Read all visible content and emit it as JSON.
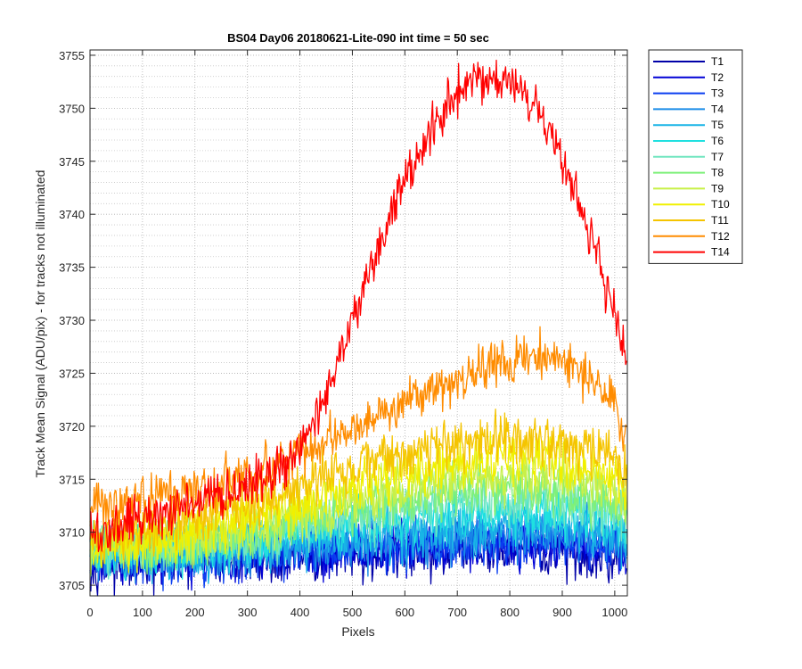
{
  "chart_data": {
    "type": "line",
    "title": "BS04 Day06 20180621-Lite-090 int time = 50 sec",
    "xlabel": "Pixels",
    "ylabel": "Track Mean Signal (ADU/pix) - for tracks not illuminated",
    "xlim": [
      0,
      1024
    ],
    "ylim": [
      3704,
      3755.5
    ],
    "xticks": [
      0,
      100,
      200,
      300,
      400,
      500,
      600,
      700,
      800,
      900,
      1000
    ],
    "yticks": [
      3705,
      3710,
      3715,
      3720,
      3725,
      3730,
      3735,
      3740,
      3745,
      3750,
      3755
    ],
    "x": [
      0,
      50,
      100,
      150,
      200,
      250,
      300,
      350,
      400,
      450,
      500,
      550,
      600,
      650,
      700,
      750,
      800,
      850,
      900,
      950,
      1000,
      1024
    ],
    "grid": true,
    "minor_grid_y": true,
    "legend_position": "outside-right",
    "series": [
      {
        "name": "T1",
        "color": "#0000a8",
        "noise": 1.2,
        "values": [
          3707.0,
          3707.0,
          3707.0,
          3707.0,
          3707.2,
          3707.3,
          3707.4,
          3707.5,
          3707.6,
          3707.7,
          3707.8,
          3707.9,
          3708.0,
          3708.0,
          3708.1,
          3708.1,
          3708.1,
          3708.1,
          3708.0,
          3707.9,
          3707.8,
          3707.5
        ]
      },
      {
        "name": "T2",
        "color": "#0000d6",
        "noise": 1.2,
        "values": [
          3707.2,
          3707.3,
          3707.4,
          3707.5,
          3707.6,
          3707.7,
          3707.9,
          3708.0,
          3708.1,
          3708.2,
          3708.4,
          3708.5,
          3708.6,
          3708.7,
          3708.8,
          3708.8,
          3708.9,
          3708.9,
          3708.8,
          3708.7,
          3708.5,
          3708.2
        ]
      },
      {
        "name": "T3",
        "color": "#0a3ef0",
        "noise": 1.2,
        "values": [
          3707.3,
          3707.4,
          3707.5,
          3707.6,
          3707.7,
          3707.8,
          3708.0,
          3708.1,
          3708.3,
          3708.5,
          3708.7,
          3708.8,
          3709.0,
          3709.1,
          3709.2,
          3709.3,
          3709.3,
          3709.3,
          3709.2,
          3709.1,
          3708.9,
          3708.6
        ]
      },
      {
        "name": "T4",
        "color": "#1a8ce8",
        "noise": 1.2,
        "values": [
          3707.5,
          3707.6,
          3707.7,
          3707.8,
          3707.9,
          3708.0,
          3708.2,
          3708.4,
          3708.6,
          3708.8,
          3709.0,
          3709.2,
          3709.4,
          3709.5,
          3709.6,
          3709.7,
          3709.8,
          3709.8,
          3709.7,
          3709.6,
          3709.4,
          3709.0
        ]
      },
      {
        "name": "T5",
        "color": "#18b4e6",
        "noise": 1.2,
        "values": [
          3707.8,
          3707.9,
          3708.0,
          3708.1,
          3708.2,
          3708.4,
          3708.6,
          3708.8,
          3709.1,
          3709.4,
          3709.7,
          3709.9,
          3710.1,
          3710.3,
          3710.4,
          3710.5,
          3710.6,
          3710.6,
          3710.5,
          3710.3,
          3710.0,
          3709.6
        ]
      },
      {
        "name": "T6",
        "color": "#1fe0e0",
        "noise": 1.2,
        "values": [
          3708.0,
          3708.1,
          3708.2,
          3708.4,
          3708.6,
          3708.8,
          3709.1,
          3709.4,
          3709.8,
          3710.2,
          3710.6,
          3711.0,
          3711.3,
          3711.5,
          3711.7,
          3711.8,
          3711.9,
          3711.9,
          3711.8,
          3711.5,
          3711.1,
          3710.6
        ]
      },
      {
        "name": "T7",
        "color": "#72e6c0",
        "noise": 1.2,
        "values": [
          3708.2,
          3708.3,
          3708.5,
          3708.7,
          3708.9,
          3709.2,
          3709.5,
          3709.9,
          3710.4,
          3710.9,
          3711.4,
          3711.8,
          3712.2,
          3712.5,
          3712.7,
          3712.9,
          3713.0,
          3713.0,
          3712.8,
          3712.5,
          3712.0,
          3711.4
        ]
      },
      {
        "name": "T8",
        "color": "#7ef07a",
        "noise": 1.2,
        "values": [
          3708.4,
          3708.5,
          3708.7,
          3708.9,
          3709.2,
          3709.5,
          3709.9,
          3710.4,
          3711.0,
          3711.6,
          3712.2,
          3712.7,
          3713.1,
          3713.5,
          3713.8,
          3714.0,
          3714.1,
          3714.1,
          3713.9,
          3713.5,
          3712.9,
          3712.2
        ]
      },
      {
        "name": "T9",
        "color": "#c8f048",
        "noise": 1.2,
        "values": [
          3708.6,
          3708.7,
          3708.9,
          3709.2,
          3709.5,
          3709.9,
          3710.4,
          3711.0,
          3711.7,
          3712.4,
          3713.1,
          3713.7,
          3714.2,
          3714.6,
          3714.9,
          3715.2,
          3715.3,
          3715.3,
          3715.1,
          3714.6,
          3713.9,
          3713.1
        ]
      },
      {
        "name": "T10",
        "color": "#f0f000",
        "noise": 1.2,
        "values": [
          3708.9,
          3709.0,
          3709.3,
          3709.6,
          3710.0,
          3710.5,
          3711.1,
          3711.8,
          3712.6,
          3713.4,
          3714.2,
          3714.9,
          3715.5,
          3716.0,
          3716.4,
          3716.7,
          3716.8,
          3716.8,
          3716.6,
          3716.0,
          3715.2,
          3714.2
        ]
      },
      {
        "name": "T11",
        "color": "#f5c400",
        "noise": 1.2,
        "values": [
          3709.5,
          3709.8,
          3710.2,
          3710.7,
          3711.3,
          3711.9,
          3712.6,
          3713.4,
          3714.3,
          3715.2,
          3716.1,
          3716.9,
          3717.5,
          3718.0,
          3718.4,
          3718.7,
          3718.8,
          3718.8,
          3718.5,
          3717.8,
          3716.8,
          3715.5
        ]
      },
      {
        "name": "T12",
        "color": "#ff8c00",
        "noise": 1.1,
        "values": [
          3712.3,
          3712.5,
          3713.0,
          3713.5,
          3714.0,
          3714.6,
          3715.4,
          3716.2,
          3717.4,
          3718.6,
          3720.0,
          3721.2,
          3722.3,
          3723.3,
          3724.4,
          3725.6,
          3726.3,
          3726.8,
          3726.2,
          3724.6,
          3722.2,
          3718.5
        ]
      },
      {
        "name": "T14",
        "color": "#ff0000",
        "noise": 1.1,
        "values": [
          3709.8,
          3710.6,
          3711.3,
          3712.0,
          3712.8,
          3713.5,
          3714.3,
          3715.6,
          3718.0,
          3722.7,
          3730.2,
          3737.0,
          3743.4,
          3748.0,
          3751.6,
          3752.8,
          3752.6,
          3750.0,
          3745.0,
          3738.4,
          3730.8,
          3726.2
        ]
      }
    ]
  }
}
